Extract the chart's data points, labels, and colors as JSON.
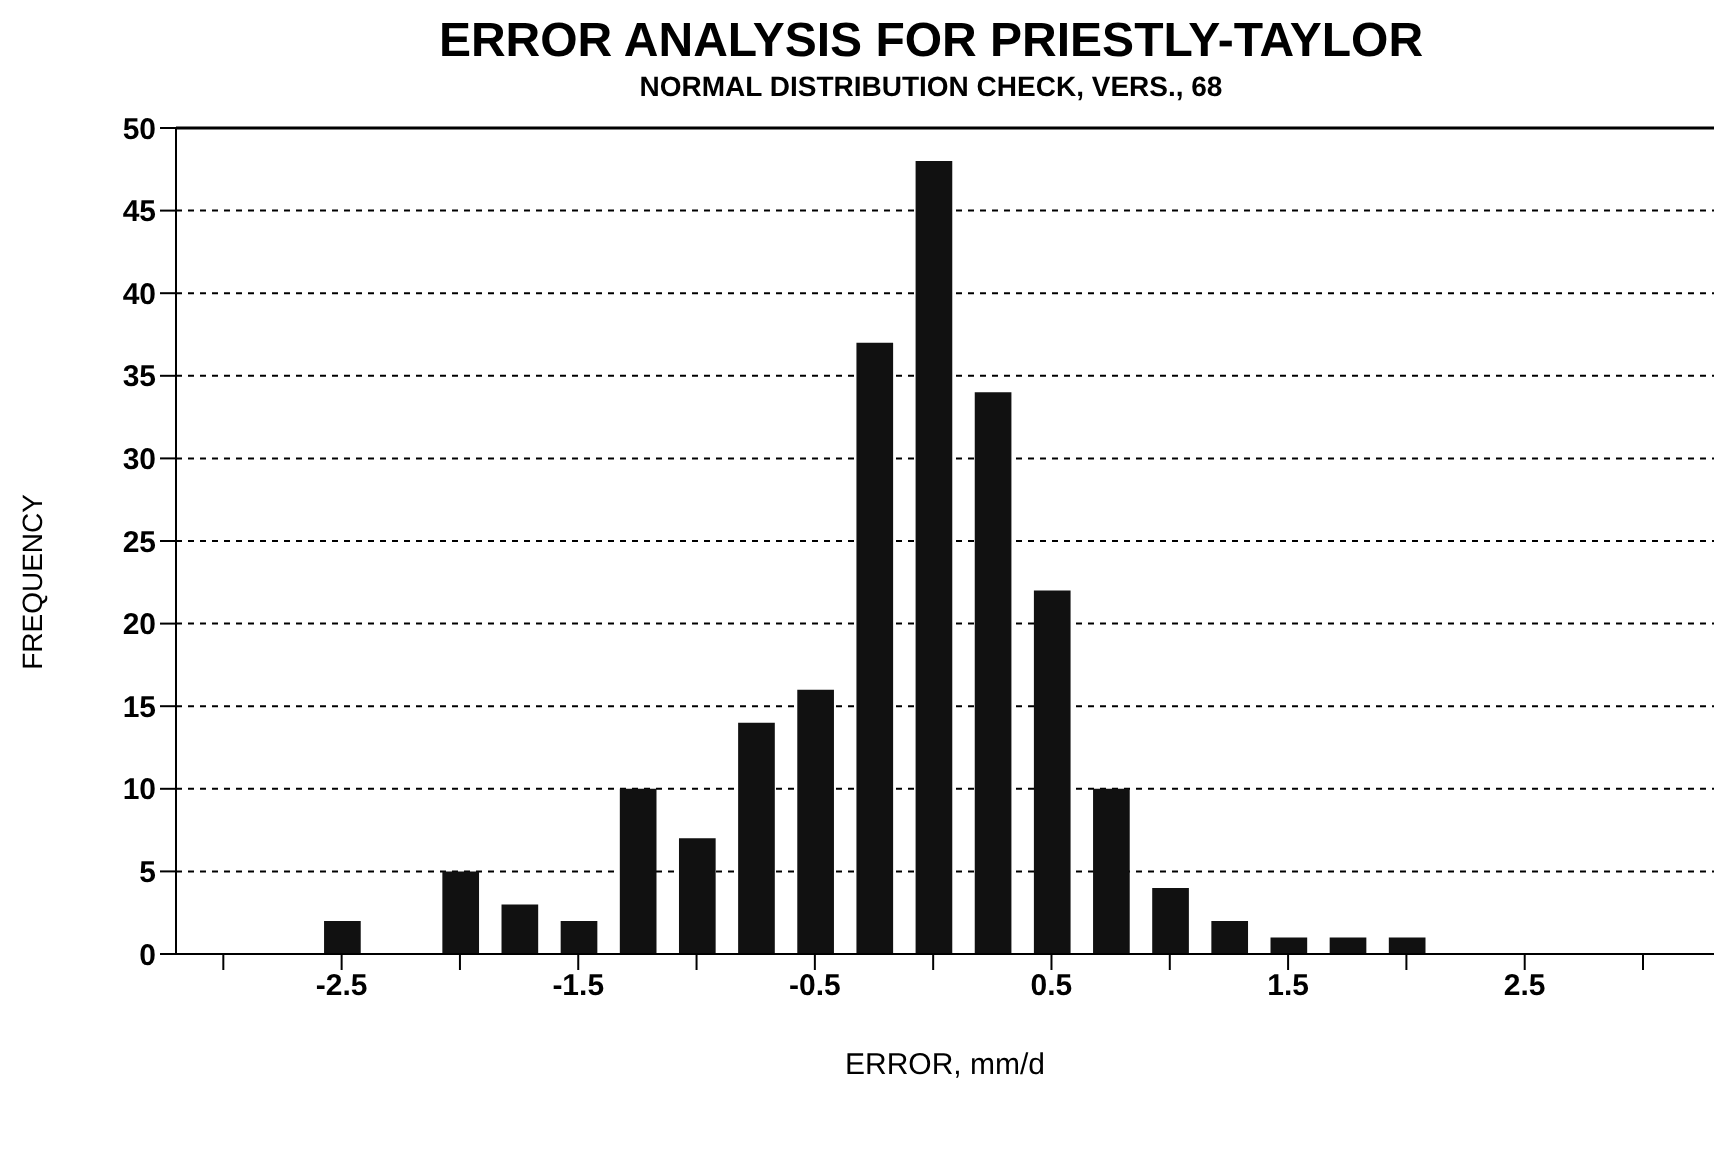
{
  "chart_data": {
    "type": "histogram",
    "title": "ERROR ANALYSIS FOR PRIESTLY-TAYLOR",
    "subtitle": "NORMAL DISTRIBUTION CHECK, VERS., 68",
    "xlabel": "ERROR, mm/d",
    "ylabel": "FREQUENCY",
    "bins": [
      -2.625,
      -2.375,
      -2.125,
      -1.875,
      -1.625,
      -1.375,
      -1.125,
      -0.875,
      -0.625,
      -0.375,
      -0.125,
      0.125,
      0.375,
      0.625,
      0.875,
      1.125,
      1.375,
      1.625,
      1.875,
      2.125
    ],
    "values": [
      2,
      0,
      5,
      3,
      2,
      10,
      7,
      14,
      16,
      37,
      48,
      34,
      22,
      10,
      4,
      2,
      1,
      1,
      1
    ],
    "color": "#111111",
    "xlim": [
      -3.2,
      3.3
    ],
    "xticks": [
      {
        "value": -3,
        "label": null
      },
      -2.5,
      {
        "value": -2,
        "label": null
      },
      -1.5,
      {
        "value": -1,
        "label": null
      },
      -0.5,
      {
        "value": 0,
        "label": null
      },
      0.5,
      {
        "value": 1,
        "label": null
      },
      1.5,
      {
        "value": 2,
        "label": null
      },
      2.5,
      {
        "value": 3,
        "label": null
      }
    ],
    "ylim": [
      0,
      50
    ],
    "yticks": [
      0,
      5,
      10,
      15,
      20,
      25,
      30,
      35,
      40,
      45,
      50
    ],
    "grid": "y"
  }
}
